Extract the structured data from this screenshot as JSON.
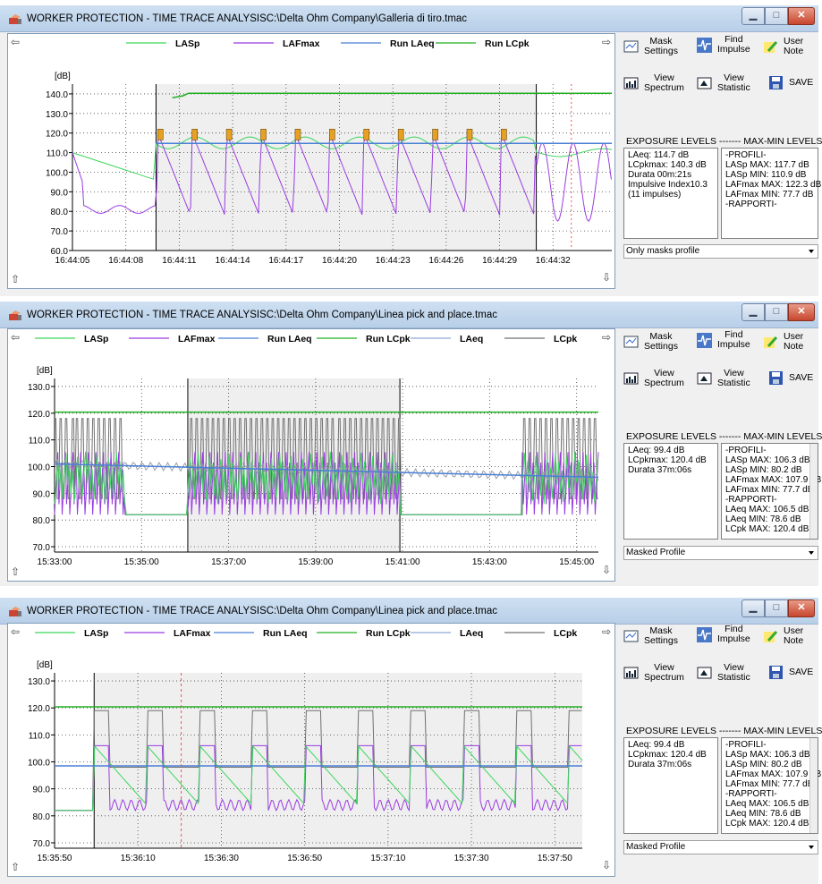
{
  "windows": [
    {
      "title": "WORKER PROTECTION - TIME TRACE ANALYSISC:\\Delta Ohm Company\\Galleria di tiro.tmac",
      "legend": [
        "LASp",
        "LAFmax",
        "Run LAeq",
        "Run LCpk"
      ],
      "legend_colors": [
        "#3cd65a",
        "#9a3ce0",
        "#4a7fd6",
        "#22b022"
      ],
      "y_unit": "[dB]",
      "exposure": [
        "LAeq: 114.7 dB",
        "LCpkmax: 140.3 dB",
        "Durata 00m:21s",
        "Impulsive Index10.3",
        "(11 impulses)"
      ],
      "maxmin": [
        "-PROFILI-",
        "LASp MAX: 117.7 dB",
        "LASp MIN: 110.9 dB",
        "LAFmax MAX: 122.3 dB",
        "LAFmax MIN: 77.7 dB",
        "-RAPPORTI-"
      ],
      "profile": "Only masks profile"
    },
    {
      "title": "WORKER PROTECTION - TIME TRACE ANALYSISC:\\Delta Ohm Company\\Linea pick and place.tmac",
      "legend": [
        "LASp",
        "LAFmax",
        "Run LAeq",
        "Run LCpk",
        "LAeq",
        "LCpk"
      ],
      "legend_colors": [
        "#3cd65a",
        "#9a3ce0",
        "#4a7fd6",
        "#22b022",
        "#8fa6d8",
        "#707070"
      ],
      "y_unit": "[dB]",
      "exposure": [
        "LAeq: 99.4 dB",
        "LCpkmax: 120.4 dB",
        "Durata 37m:06s"
      ],
      "maxmin": [
        "-PROFILI-",
        "LASp MAX: 106.3 dB",
        "LASp MIN: 80.2 dB",
        "LAFmax MAX: 107.9 dB",
        "LAFmax MIN: 77.7 dB",
        "-RAPPORTI-",
        "LAeq MAX: 106.5 dB",
        "LAeq MIN: 78.6 dB",
        "LCpk MAX: 120.4 dB"
      ],
      "profile": "Masked Profile"
    },
    {
      "title": "WORKER PROTECTION - TIME TRACE ANALYSISC:\\Delta Ohm Company\\Linea pick and place.tmac",
      "legend": [
        "LASp",
        "LAFmax",
        "Run LAeq",
        "Run LCpk",
        "LAeq",
        "LCpk"
      ],
      "legend_colors": [
        "#3cd65a",
        "#9a3ce0",
        "#4a7fd6",
        "#22b022",
        "#8fa6d8",
        "#707070"
      ],
      "y_unit": "[dB]",
      "exposure": [
        "LAeq: 99.4 dB",
        "LCpkmax: 120.4 dB",
        "Durata 37m:06s"
      ],
      "maxmin": [
        "-PROFILI-",
        "LASp MAX: 106.3 dB",
        "LASp MIN: 80.2 dB",
        "LAFmax MAX: 107.9 dB",
        "LAFmax MIN: 77.7 dB",
        "-RAPPORTI-",
        "LAeq MAX: 106.5 dB",
        "LAeq MIN: 78.6 dB",
        "LCpk MAX: 120.4 dB"
      ],
      "profile": "Masked Profile"
    }
  ],
  "toolbar": {
    "mask_settings": "Mask\nSettings",
    "find_impulse": "Find\nImpulse",
    "user_note": "User\nNote",
    "view_spectrum": "View\nSpectrum",
    "view_statistic": "View\nStatistic",
    "save": "SAVE"
  },
  "levels_header": "EXPOSURE LEVELS ------- MAX-MIN LEVELS",
  "chart_data": [
    {
      "type": "line",
      "y_unit": "[dB]",
      "ylim": [
        60,
        145
      ],
      "yticks": [
        "60.0",
        "70.0",
        "80.0",
        "90.0",
        "100.0",
        "110.0",
        "120.0",
        "130.0",
        "140.0"
      ],
      "xticks": [
        "16:44:05",
        "16:44:08",
        "16:44:11",
        "16:44:14",
        "16:44:17",
        "16:44:20",
        "16:44:23",
        "16:44:26",
        "16:44:29",
        "16:44:32"
      ],
      "series": [
        {
          "name": "LASp",
          "approx": "110 falling to 96 before selection, ~115 inside with impulses"
        },
        {
          "name": "LAFmax",
          "approx": "~80 baseline before, oscillating 78-120 inside"
        },
        {
          "name": "Run LAeq",
          "approx": "~114.7 inside selection"
        },
        {
          "name": "Run LCpk",
          "approx": "~140.3 inside selection"
        }
      ],
      "impulses": 11
    },
    {
      "type": "line",
      "y_unit": "[dB]",
      "ylim": [
        68,
        133
      ],
      "yticks": [
        "70.0",
        "80.0",
        "90.0",
        "100.0",
        "110.0",
        "120.0",
        "130.0"
      ],
      "xticks": [
        "15:33:00",
        "15:35:00",
        "15:37:00",
        "15:39:00",
        "15:41:00",
        "15:43:00",
        "15:45:00"
      ],
      "series": [
        {
          "name": "Run LCpk",
          "approx": "~120.4"
        },
        {
          "name": "Run LAeq",
          "approx": "~101 decreasing to ~96"
        },
        {
          "name": "LAFmax",
          "approx": "oscillating 82-110"
        },
        {
          "name": "LCpk",
          "approx": "oscillating 80-120"
        }
      ]
    },
    {
      "type": "line",
      "y_unit": "[dB]",
      "ylim": [
        68,
        133
      ],
      "yticks": [
        "70.0",
        "80.0",
        "90.0",
        "100.0",
        "110.0",
        "120.0",
        "130.0"
      ],
      "xticks": [
        "15:35:50",
        "15:36:10",
        "15:36:30",
        "15:36:50",
        "15:37:10",
        "15:37:30",
        "15:37:50"
      ],
      "series": [
        {
          "name": "Run LCpk",
          "approx": "~120.4"
        },
        {
          "name": "Run LAeq",
          "approx": "~98.5"
        },
        {
          "name": "LAFmax",
          "approx": "periodic 82-107"
        },
        {
          "name": "LCpk",
          "approx": "periodic 95-120"
        }
      ]
    }
  ]
}
